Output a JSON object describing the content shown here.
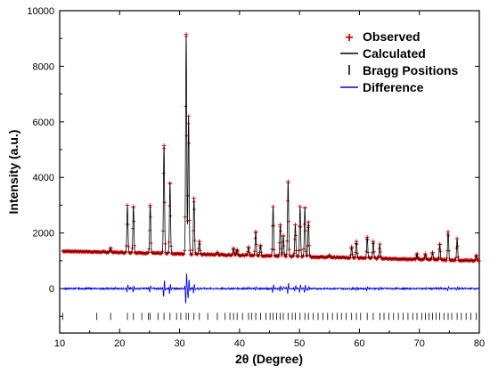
{
  "chart_data": {
    "type": "line",
    "title": "",
    "xlabel": "2θ  (Degree)",
    "ylabel": "Intensity (a.u.)",
    "xlim": [
      10,
      80
    ],
    "ylim": [
      -1600,
      10000
    ],
    "x_ticks": [
      10,
      20,
      30,
      40,
      50,
      60,
      70,
      80
    ],
    "y_ticks": [
      0,
      2000,
      4000,
      6000,
      8000,
      10000
    ],
    "grid": false,
    "legend_position": "top-right",
    "colors": {
      "observed": "#e00000",
      "calculated": "#000000",
      "bragg": "#000000",
      "difference": "#0000ee"
    },
    "background_start": 1350,
    "background_end": 1000,
    "bragg_y": -1000,
    "series": [
      {
        "name": "Observed",
        "style": "markers",
        "peaks": [
          {
            "x": 18.5,
            "y": 1450
          },
          {
            "x": 21.3,
            "y": 3000
          },
          {
            "x": 22.3,
            "y": 2950
          },
          {
            "x": 25.1,
            "y": 3000
          },
          {
            "x": 27.4,
            "y": 5150
          },
          {
            "x": 28.4,
            "y": 3800
          },
          {
            "x": 31.1,
            "y": 9150
          },
          {
            "x": 31.5,
            "y": 6200
          },
          {
            "x": 32.4,
            "y": 3250
          },
          {
            "x": 33.3,
            "y": 1700
          },
          {
            "x": 36.3,
            "y": 1300
          },
          {
            "x": 39.0,
            "y": 1450
          },
          {
            "x": 39.6,
            "y": 1400
          },
          {
            "x": 41.5,
            "y": 1500
          },
          {
            "x": 42.7,
            "y": 2050
          },
          {
            "x": 43.5,
            "y": 1550
          },
          {
            "x": 45.6,
            "y": 2950
          },
          {
            "x": 46.8,
            "y": 2300
          },
          {
            "x": 47.3,
            "y": 1900
          },
          {
            "x": 48.1,
            "y": 3850
          },
          {
            "x": 49.3,
            "y": 2300
          },
          {
            "x": 50.1,
            "y": 2950
          },
          {
            "x": 50.9,
            "y": 2900
          },
          {
            "x": 51.5,
            "y": 2400
          },
          {
            "x": 55.0,
            "y": 1200
          },
          {
            "x": 58.7,
            "y": 1500
          },
          {
            "x": 59.5,
            "y": 1700
          },
          {
            "x": 61.3,
            "y": 1850
          },
          {
            "x": 62.3,
            "y": 1700
          },
          {
            "x": 63.4,
            "y": 1600
          },
          {
            "x": 69.6,
            "y": 1250
          },
          {
            "x": 71.0,
            "y": 1250
          },
          {
            "x": 72.2,
            "y": 1300
          },
          {
            "x": 73.4,
            "y": 1600
          },
          {
            "x": 74.8,
            "y": 2050
          },
          {
            "x": 76.3,
            "y": 1800
          },
          {
            "x": 79.5,
            "y": 1200
          }
        ]
      },
      {
        "name": "Calculated",
        "style": "line"
      },
      {
        "name": "Bragg Positions",
        "style": "ticks",
        "x": [
          10.5,
          16.2,
          18.5,
          21.3,
          22.3,
          23.7,
          24.8,
          25.1,
          26.4,
          27.4,
          28.4,
          29.5,
          30.2,
          31.1,
          31.5,
          32.4,
          33.3,
          34.7,
          36.3,
          37.6,
          38.4,
          39.0,
          39.6,
          40.5,
          41.5,
          42.0,
          42.7,
          43.5,
          44.4,
          45.1,
          45.6,
          46.2,
          46.8,
          47.3,
          48.1,
          48.8,
          49.3,
          50.1,
          50.9,
          51.5,
          52.3,
          53.1,
          53.9,
          54.7,
          55.5,
          56.3,
          57.0,
          57.8,
          58.7,
          59.5,
          60.2,
          61.3,
          62.3,
          63.4,
          64.1,
          64.9,
          65.7,
          66.5,
          67.3,
          68.1,
          68.9,
          69.6,
          70.4,
          71.0,
          71.6,
          72.2,
          72.8,
          73.4,
          74.1,
          74.8,
          75.4,
          76.3,
          77.0,
          77.8,
          78.6,
          79.5
        ]
      },
      {
        "name": "Difference",
        "style": "line",
        "offset": 0
      }
    ]
  }
}
